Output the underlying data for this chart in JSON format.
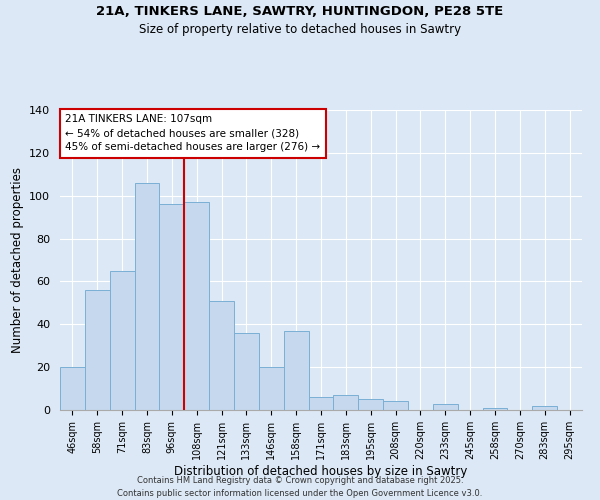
{
  "title1": "21A, TINKERS LANE, SAWTRY, HUNTINGDON, PE28 5TE",
  "title2": "Size of property relative to detached houses in Sawtry",
  "xlabel": "Distribution of detached houses by size in Sawtry",
  "ylabel": "Number of detached properties",
  "categories": [
    "46sqm",
    "58sqm",
    "71sqm",
    "83sqm",
    "96sqm",
    "108sqm",
    "121sqm",
    "133sqm",
    "146sqm",
    "158sqm",
    "171sqm",
    "183sqm",
    "195sqm",
    "208sqm",
    "220sqm",
    "233sqm",
    "245sqm",
    "258sqm",
    "270sqm",
    "283sqm",
    "295sqm"
  ],
  "values": [
    20,
    56,
    65,
    106,
    96,
    97,
    51,
    36,
    20,
    37,
    6,
    7,
    5,
    4,
    0,
    3,
    0,
    1,
    0,
    2,
    0
  ],
  "bar_color": "#c5d8ed",
  "bar_edge_color": "#7aafd4",
  "highlight_index": 5,
  "highlight_line_color": "#cc0000",
  "annotation_text": "21A TINKERS LANE: 107sqm\n← 54% of detached houses are smaller (328)\n45% of semi-detached houses are larger (276) →",
  "annotation_box_color": "#ffffff",
  "annotation_box_edge": "#cc0000",
  "ylim": [
    0,
    140
  ],
  "yticks": [
    0,
    20,
    40,
    60,
    80,
    100,
    120,
    140
  ],
  "background_color": "#dce8f5",
  "grid_color": "#ffffff",
  "footer1": "Contains HM Land Registry data © Crown copyright and database right 2025.",
  "footer2": "Contains public sector information licensed under the Open Government Licence v3.0."
}
